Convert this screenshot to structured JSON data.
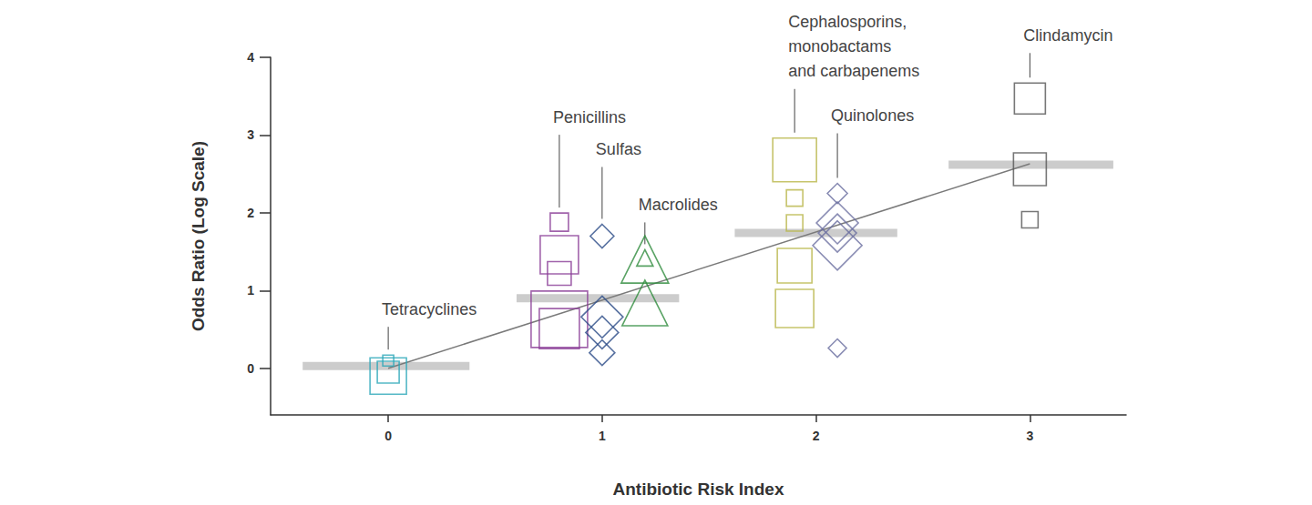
{
  "chart_data": {
    "type": "scatter",
    "x_label": "Antibiotic Risk Index",
    "y_label": "Odds Ratio (Log Scale)",
    "xlim": [
      -0.55,
      3.45
    ],
    "ylim": [
      -0.6,
      4
    ],
    "xticks": [
      0,
      1,
      2,
      3
    ],
    "yticks": [
      0,
      1,
      2,
      3,
      4
    ],
    "grid": false,
    "series": [
      {
        "name": "Tetracyclines",
        "color": "#2aa6b8",
        "marker": "square",
        "x": [
          0,
          0,
          0
        ],
        "values": [
          -0.1,
          -0.05,
          0.1
        ],
        "sizes": [
          40,
          24,
          12
        ]
      },
      {
        "name": "Penicillins",
        "color": "#8a3c96",
        "marker": "square",
        "x": [
          0.8,
          0.8,
          0.8,
          0.8,
          0.8
        ],
        "values": [
          1.88,
          1.46,
          1.22,
          0.63,
          0.51
        ],
        "sizes": [
          20,
          42,
          26,
          62,
          44
        ]
      },
      {
        "name": "Sulfas",
        "color": "#2f4f8a",
        "marker": "diamond",
        "x": [
          1,
          1,
          1,
          1
        ],
        "values": [
          1.7,
          0.66,
          0.46,
          0.2
        ],
        "sizes": [
          26,
          46,
          36,
          28
        ]
      },
      {
        "name": "Macrolides",
        "color": "#2e8b3c",
        "marker": "triangle",
        "x": [
          1.2,
          1.2,
          1.2
        ],
        "values": [
          1.4,
          1.42,
          0.84
        ],
        "sizes": [
          52,
          18,
          50
        ]
      },
      {
        "name": "Cephalosporins,\nmonobactams\nand carbapenems",
        "color": "#b8b547",
        "marker": "square",
        "x": [
          1.9,
          1.9,
          1.9,
          1.9,
          1.9
        ],
        "values": [
          2.68,
          2.19,
          1.87,
          1.32,
          0.77
        ],
        "sizes": [
          48,
          18,
          18,
          38,
          42
        ]
      },
      {
        "name": "Quinolones",
        "color": "#6b6fa0",
        "marker": "diamond",
        "x": [
          2.1,
          2.1,
          2.1,
          2.1,
          2.1
        ],
        "values": [
          2.25,
          1.87,
          1.74,
          1.58,
          0.26
        ],
        "sizes": [
          22,
          46,
          42,
          54,
          20
        ]
      },
      {
        "name": "Clindamycin",
        "color": "#555555",
        "marker": "square",
        "x": [
          3,
          3,
          3
        ],
        "values": [
          3.47,
          2.56,
          1.91
        ],
        "sizes": [
          34,
          36,
          18
        ]
      }
    ],
    "means": [
      {
        "x": [
          -0.4,
          0.38
        ],
        "y": 0.03
      },
      {
        "x": [
          0.6,
          1.36
        ],
        "y": 0.9
      },
      {
        "x": [
          1.62,
          2.38
        ],
        "y": 1.74
      },
      {
        "x": [
          2.62,
          3.39
        ],
        "y": 2.62
      }
    ],
    "trend": {
      "x": [
        0,
        3
      ],
      "y": [
        0,
        2.63
      ]
    }
  }
}
